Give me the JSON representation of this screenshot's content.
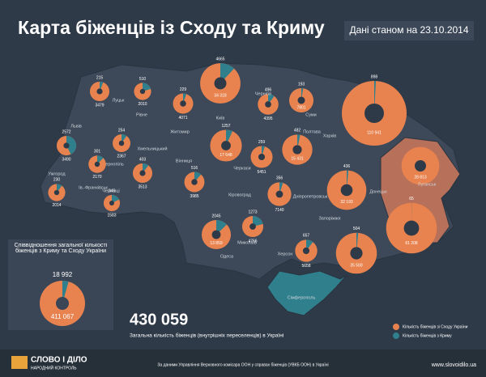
{
  "header": {
    "title": "Карта біженців із Сходу та Криму",
    "date": "Дані станом на 23.10.2014"
  },
  "colors": {
    "east": "#e8834f",
    "crimea": "#2f7f8c"
  },
  "cities": [
    {
      "name": "Луцьк",
      "crimea": 215,
      "east": 3479
    },
    {
      "name": "Рівне",
      "crimea": 510,
      "east": 2010
    },
    {
      "name": "Житомир",
      "crimea": 229,
      "east": 4071
    },
    {
      "name": "Київ",
      "crimea": 4665,
      "east": 34318,
      "east_label": "34 318"
    },
    {
      "crimea": 1257,
      "east": 17648,
      "east_label": "17 648"
    },
    {
      "name": "Чернігів",
      "crimea": 496,
      "east": 4395
    },
    {
      "name": "Суми",
      "crimea": 193,
      "east": 7801
    },
    {
      "name": "Харків",
      "crimea": 898,
      "east": 110941,
      "east_label": "110 941"
    },
    {
      "name": "Луганськ",
      "east": 28813,
      "east_label": "28 813"
    },
    {
      "name": "Донецьк",
      "crimea": 65,
      "east": 61208,
      "east_label": "61 208"
    },
    {
      "name": "Львів",
      "crimea": 2572,
      "east": 3490
    },
    {
      "name": "Тернопіль",
      "crimea": 254,
      "east": 2367
    },
    {
      "name": "Ів.-Франківськ",
      "crimea": 301,
      "east": 2170
    },
    {
      "name": "Хмельницький",
      "crimea": 403,
      "east": 3513
    },
    {
      "name": "Ужгород",
      "crimea": 230,
      "east": 2014
    },
    {
      "name": "Чернівці",
      "crimea": 345,
      "east": 1583
    },
    {
      "name": "Вінниця",
      "crimea": 516,
      "east": 3985
    },
    {
      "name": "Черкаси",
      "crimea": 259,
      "east": 5451
    },
    {
      "name": "Полтава",
      "crimea": 482,
      "east": 15431,
      "east_label": "15 431"
    },
    {
      "name": "Кіровоград",
      "crimea": 356,
      "east": 7140
    },
    {
      "name": "Дніпропетровськ",
      "crimea": 436,
      "east": 32193,
      "east_label": "32 193"
    },
    {
      "name": "Запоріжжя",
      "crimea": 504,
      "east": 35569,
      "east_label": "35 569"
    },
    {
      "name": "Одеса",
      "crimea": 2045,
      "east": 13859,
      "east_label": "13 859"
    },
    {
      "name": "Миколаїв",
      "crimea": 1273,
      "east": 4766
    },
    {
      "name": "Херсон",
      "crimea": 657,
      "east": 5658
    }
  ],
  "crimea_label": "Сімферополь",
  "inset": {
    "title": "Співвідношення загальної кількості біженців з Криму та Сходу України",
    "crimea": 18992,
    "crimea_label": "18 992",
    "east": 411067,
    "east_label": "411 067"
  },
  "total": {
    "value": 430059,
    "label": "430 059",
    "caption": "Загальна кількість біженців (внутрішніх переселенців) в Україні"
  },
  "legend": {
    "east": "Кількість біженців зі Сходу України",
    "crimea": "Кількість біженців з Криму"
  },
  "footer": {
    "logo": "СЛОВО І ДІЛО",
    "logo_sub": "НАРОДНИЙ КОНТРОЛЬ",
    "source": "За даними Управління Верховного комісара ООН у справах біженців (УВКБ ООН) в Україні",
    "site": "www.slovoidilo.ua"
  }
}
